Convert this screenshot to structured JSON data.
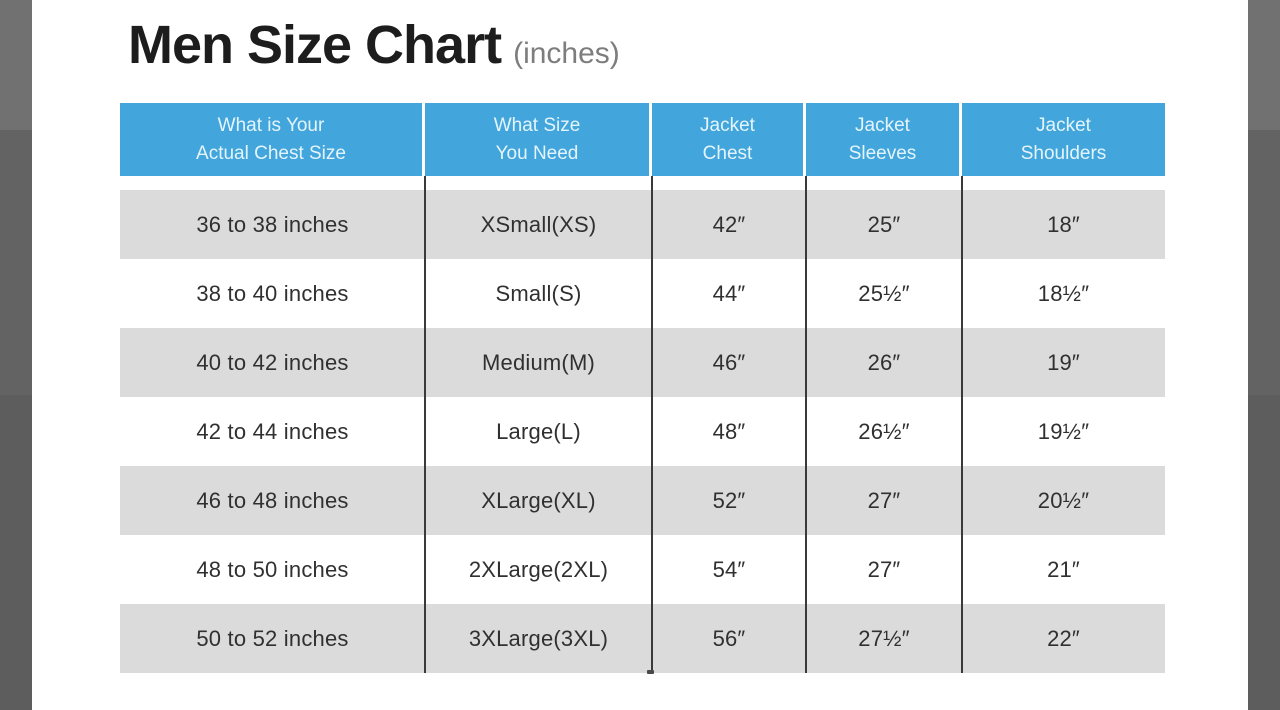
{
  "page": {
    "title": "Men Size Chart",
    "subtitle": "(inches)"
  },
  "table": {
    "headers": [
      [
        "What is Your",
        "Actual Chest Size"
      ],
      [
        "What Size",
        "You Need"
      ],
      [
        "Jacket",
        "Chest"
      ],
      [
        "Jacket",
        "Sleeves"
      ],
      [
        "Jacket",
        "Shoulders"
      ]
    ],
    "rows": [
      [
        "36 to 38 inches",
        "XSmall(XS)",
        "42″",
        "25″",
        "18″"
      ],
      [
        "38 to 40 inches",
        "Small(S)",
        "44″",
        "25½″",
        "18½″"
      ],
      [
        "40 to 42 inches",
        "Medium(M)",
        "46″",
        "26″",
        "19″"
      ],
      [
        "42 to 44 inches",
        "Large(L)",
        "48″",
        "26½″",
        "19½″"
      ],
      [
        "46 to 48 inches",
        "XLarge(XL)",
        "52″",
        "27″",
        "20½″"
      ],
      [
        "48 to 50 inches",
        "2XLarge(2XL)",
        "54″",
        "27″",
        "21″"
      ],
      [
        "50 to 52 inches",
        "3XLarge(3XL)",
        "56″",
        "27½″",
        "22″"
      ]
    ]
  },
  "colors": {
    "header_bg": "#42a6dc",
    "header_text": "#e4f4fd",
    "row_alt_bg": "#dbdbdb",
    "divider": "#3a3a3a",
    "side_band": "#6a6a6a",
    "title_text": "#1d1d1d",
    "subtitle_text": "#7d7d7d"
  },
  "chart_data": {
    "type": "table",
    "title": "Men Size Chart (inches)",
    "columns": [
      "What is Your Actual Chest Size",
      "What Size You Need",
      "Jacket Chest",
      "Jacket Sleeves",
      "Jacket Shoulders"
    ],
    "rows": [
      [
        "36 to 38 inches",
        "XSmall(XS)",
        "42″",
        "25″",
        "18″"
      ],
      [
        "38 to 40 inches",
        "Small(S)",
        "44″",
        "25½″",
        "18½″"
      ],
      [
        "40 to 42 inches",
        "Medium(M)",
        "46″",
        "26″",
        "19″"
      ],
      [
        "42 to 44 inches",
        "Large(L)",
        "48″",
        "26½″",
        "19½″"
      ],
      [
        "46 to 48 inches",
        "XLarge(XL)",
        "52″",
        "27″",
        "20½″"
      ],
      [
        "48 to 50 inches",
        "2XLarge(2XL)",
        "54″",
        "27″",
        "21″"
      ],
      [
        "50 to 52 inches",
        "3XLarge(3XL)",
        "56″",
        "27½″",
        "22″"
      ]
    ]
  }
}
